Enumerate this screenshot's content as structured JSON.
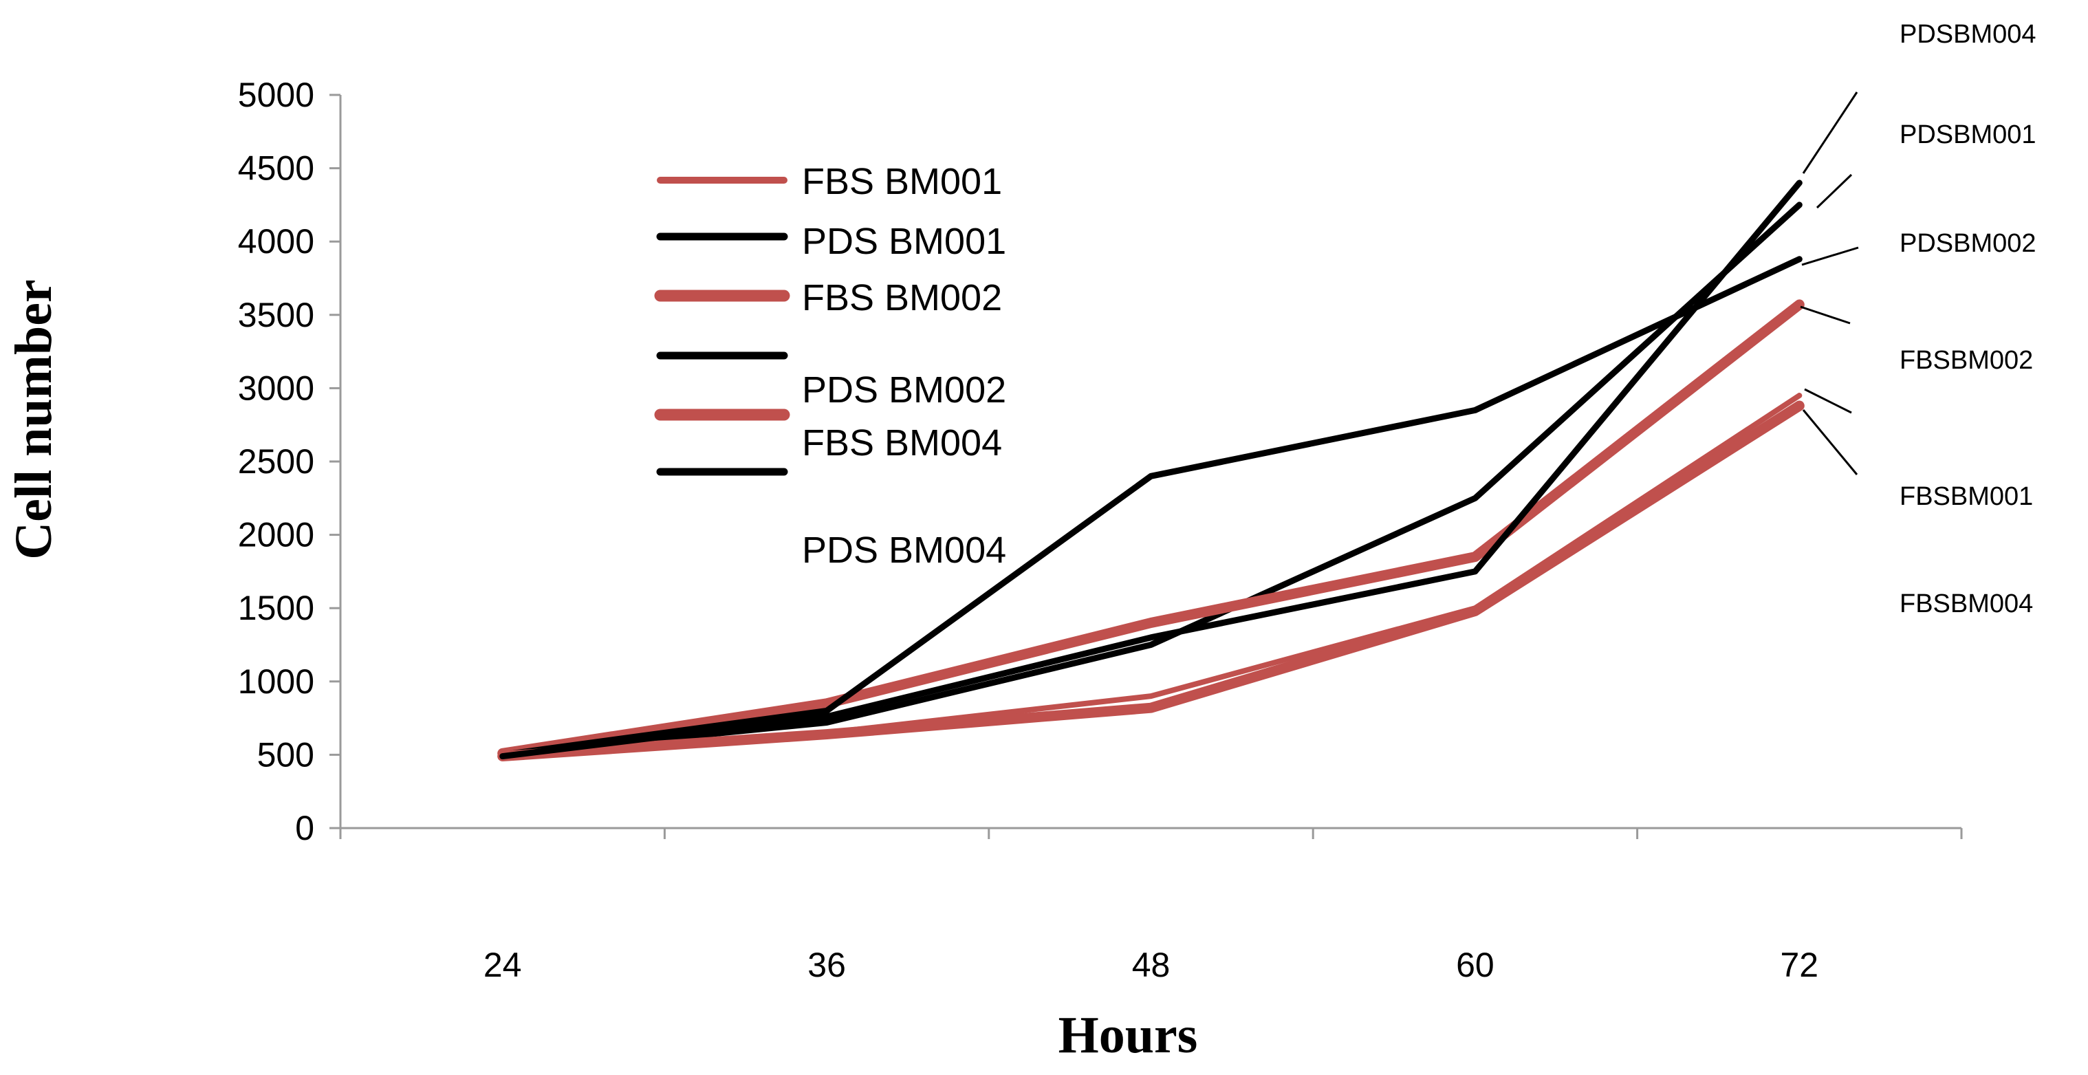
{
  "chart_data": {
    "type": "line",
    "xlabel": "Hours",
    "ylabel": "Cell number",
    "x": [
      24,
      36,
      48,
      60,
      72
    ],
    "x_tick_labels": [
      "24",
      "36",
      "48",
      "60",
      "72"
    ],
    "ylim": [
      0,
      5000
    ],
    "y_ticks": [
      0,
      500,
      1000,
      1500,
      2000,
      2500,
      3000,
      3500,
      4000,
      4500,
      5000
    ],
    "grid": false,
    "legend_placement": "upper-left",
    "series": [
      {
        "name": "FBS BM001",
        "color": "#c0504d",
        "weight": "thin",
        "values": [
          500,
          650,
          900,
          1500,
          2950
        ]
      },
      {
        "name": "PDS BM001",
        "color": "#000000",
        "weight": "medium",
        "values": [
          500,
          720,
          1250,
          2250,
          4250
        ]
      },
      {
        "name": "FBS BM002",
        "color": "#c0504d",
        "weight": "thick",
        "values": [
          510,
          850,
          1400,
          1850,
          3570
        ]
      },
      {
        "name": "PDS BM002",
        "color": "#000000",
        "weight": "medium",
        "values": [
          500,
          800,
          2400,
          2850,
          3880
        ]
      },
      {
        "name": "FBS BM004",
        "color": "#c0504d",
        "weight": "thick",
        "values": [
          490,
          640,
          820,
          1480,
          2880
        ]
      },
      {
        "name": "PDS BM004",
        "color": "#000000",
        "weight": "medium",
        "values": [
          490,
          760,
          1300,
          1750,
          4400
        ]
      }
    ],
    "end_labels": [
      "PDSBM004",
      "PDSBM001",
      "PDSBM002",
      "FBSBM002",
      "FBSBM001",
      "FBSBM004"
    ]
  }
}
